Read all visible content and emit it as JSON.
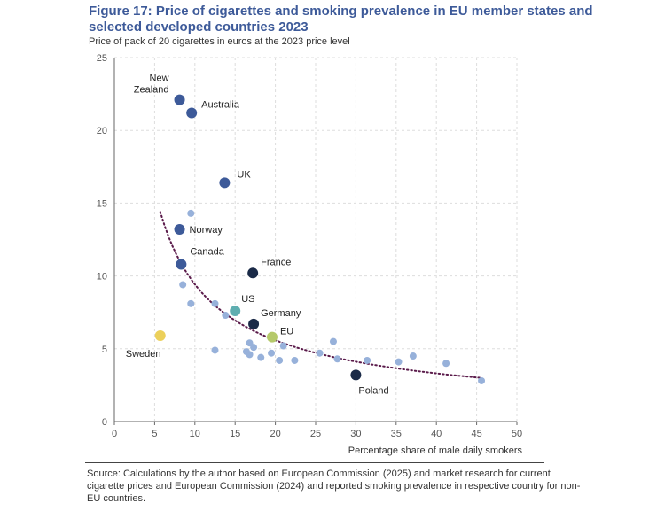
{
  "title": "Figure 17: Price of cigarettes and smoking prevalence in EU member states and selected developed countries 2023",
  "subtitle": "Price of pack of 20 cigarettes in euros at the 2023 price level",
  "source": "Source: Calculations by the author based on European Commission (2025) and market research for current cigarette prices and European Commission (2024) and reported smoking prevalence in respective country for non-EU countries.",
  "colors": {
    "title": "#3d5a99",
    "named_developed": "#3d5a99",
    "named_eu": "#1a2a47",
    "us": "#5eaeb0",
    "eu_avg": "#b5c96a",
    "sweden": "#ecd05a",
    "other_eu": "#97b1da",
    "trend": "#5a1a4a",
    "grid": "#dddddd"
  },
  "chart_data": {
    "type": "scatter",
    "title": "Figure 17: Price of cigarettes and smoking prevalence in EU member states and selected developed countries 2023",
    "xlabel": "Percentage share of male daily smokers",
    "ylabel": "Price of pack of 20 cigarettes in euros at the 2023 price level",
    "xlim": [
      0,
      50
    ],
    "ylim": [
      0,
      25
    ],
    "xticks": [
      "0",
      "5",
      "10",
      "15",
      "20",
      "25",
      "30",
      "35",
      "40",
      "45",
      "50"
    ],
    "yticks": [
      "0",
      "5",
      "10",
      "15",
      "20",
      "25"
    ],
    "grid": true,
    "labeled_points": [
      {
        "name": "New Zealand",
        "line1": "New",
        "line2": "Zealand",
        "x": 8.1,
        "y": 22.1,
        "group": "named_developed"
      },
      {
        "name": "Australia",
        "x": 9.6,
        "y": 21.2,
        "group": "named_developed"
      },
      {
        "name": "UK",
        "x": 13.7,
        "y": 16.4,
        "group": "named_developed"
      },
      {
        "name": "Norway",
        "x": 8.1,
        "y": 13.2,
        "group": "named_developed"
      },
      {
        "name": "Canada",
        "x": 8.3,
        "y": 10.8,
        "group": "named_developed"
      },
      {
        "name": "France",
        "x": 17.2,
        "y": 10.2,
        "group": "named_eu"
      },
      {
        "name": "US",
        "x": 15.0,
        "y": 7.6,
        "group": "us"
      },
      {
        "name": "Germany",
        "x": 17.3,
        "y": 6.7,
        "group": "named_eu"
      },
      {
        "name": "EU",
        "x": 19.6,
        "y": 5.8,
        "group": "eu_avg"
      },
      {
        "name": "Sweden",
        "x": 5.7,
        "y": 5.9,
        "group": "sweden"
      },
      {
        "name": "Poland",
        "x": 30.0,
        "y": 3.2,
        "group": "named_eu"
      }
    ],
    "other_points": [
      {
        "x": 9.5,
        "y": 14.3
      },
      {
        "x": 8.5,
        "y": 9.4
      },
      {
        "x": 9.5,
        "y": 8.1
      },
      {
        "x": 12.5,
        "y": 8.1
      },
      {
        "x": 13.8,
        "y": 7.3
      },
      {
        "x": 12.5,
        "y": 4.9
      },
      {
        "x": 16.8,
        "y": 5.4
      },
      {
        "x": 17.3,
        "y": 5.1
      },
      {
        "x": 16.4,
        "y": 4.8
      },
      {
        "x": 16.8,
        "y": 4.6
      },
      {
        "x": 18.2,
        "y": 4.4
      },
      {
        "x": 19.5,
        "y": 4.7
      },
      {
        "x": 20.5,
        "y": 4.2
      },
      {
        "x": 21.0,
        "y": 5.2
      },
      {
        "x": 22.4,
        "y": 4.2
      },
      {
        "x": 25.5,
        "y": 4.7
      },
      {
        "x": 27.2,
        "y": 5.5
      },
      {
        "x": 27.7,
        "y": 4.3
      },
      {
        "x": 31.4,
        "y": 4.2
      },
      {
        "x": 35.3,
        "y": 4.1
      },
      {
        "x": 37.1,
        "y": 4.5
      },
      {
        "x": 41.2,
        "y": 4.0
      },
      {
        "x": 45.6,
        "y": 2.8
      }
    ],
    "trendline": {
      "type": "power",
      "x_range": [
        5.7,
        45.6
      ],
      "y_start": 14.4,
      "y_end": 3.0
    }
  }
}
